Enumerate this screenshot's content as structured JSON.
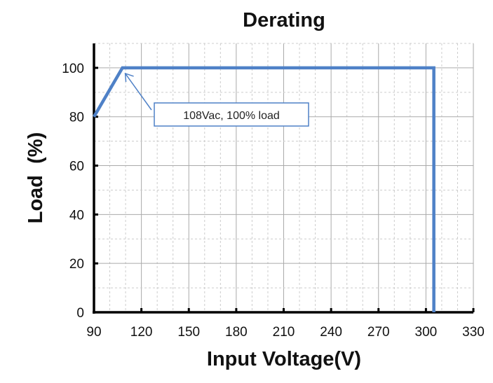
{
  "chart_data": {
    "type": "line",
    "title": "Derating",
    "xlabel": "Input Voltage(V)",
    "ylabel": "Load  (%)",
    "xlim": [
      90,
      330
    ],
    "ylim": [
      0,
      110
    ],
    "xticks": [
      90,
      120,
      150,
      180,
      210,
      240,
      270,
      300,
      330
    ],
    "yticks": [
      0,
      20,
      40,
      60,
      80,
      100
    ],
    "grid": "on (major solid, minor dashed every 10)",
    "series": [
      {
        "x": [
          90,
          108,
          305,
          305
        ],
        "y": [
          80,
          100,
          100,
          0
        ],
        "color": "#4f81c7"
      }
    ],
    "annotation": {
      "text": "108Vac, 100% load",
      "x": 108,
      "y": 100
    }
  }
}
